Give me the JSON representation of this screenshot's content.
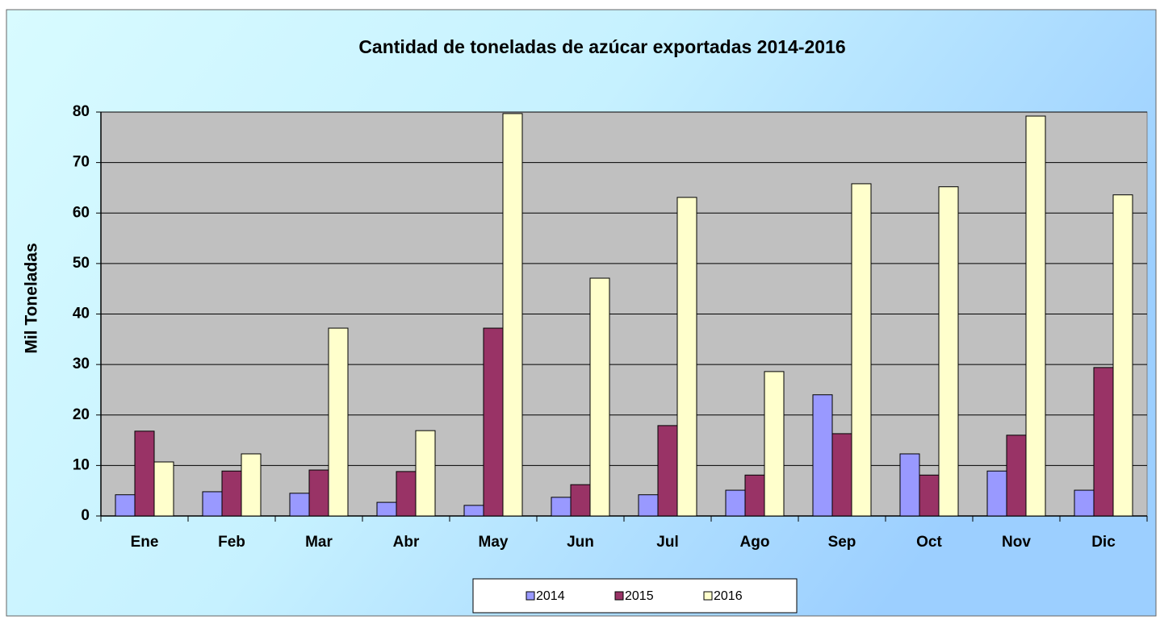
{
  "chart_data": {
    "type": "bar",
    "title": "Cantidad de toneladas de azúcar exportadas 2014-2016",
    "y_label": "Mil Toneladas",
    "categories": [
      "Ene",
      "Feb",
      "Mar",
      "Abr",
      "May",
      "Jun",
      "Jul",
      "Ago",
      "Sep",
      "Oct",
      "Nov",
      "Dic"
    ],
    "series": [
      {
        "name": "2014",
        "color": "#9999ff",
        "values": [
          4.2,
          4.8,
          4.5,
          2.7,
          2.1,
          3.7,
          4.2,
          5.1,
          24,
          12.3,
          8.9,
          5.1
        ]
      },
      {
        "name": "2015",
        "color": "#993366",
        "values": [
          16.8,
          8.9,
          9.1,
          8.8,
          37.2,
          6.2,
          17.9,
          8.1,
          16.3,
          8.1,
          16,
          29.4
        ]
      },
      {
        "name": "2016",
        "color": "#ffffcc",
        "values": [
          10.7,
          12.3,
          37.2,
          16.9,
          79.7,
          47.1,
          63.1,
          28.6,
          65.8,
          65.2,
          79.2,
          63.6
        ]
      }
    ],
    "ylim": [
      0,
      80
    ],
    "yticks": [
      0,
      10,
      20,
      30,
      40,
      50,
      60,
      70,
      80
    ],
    "grid": true,
    "legend": "bottom"
  }
}
